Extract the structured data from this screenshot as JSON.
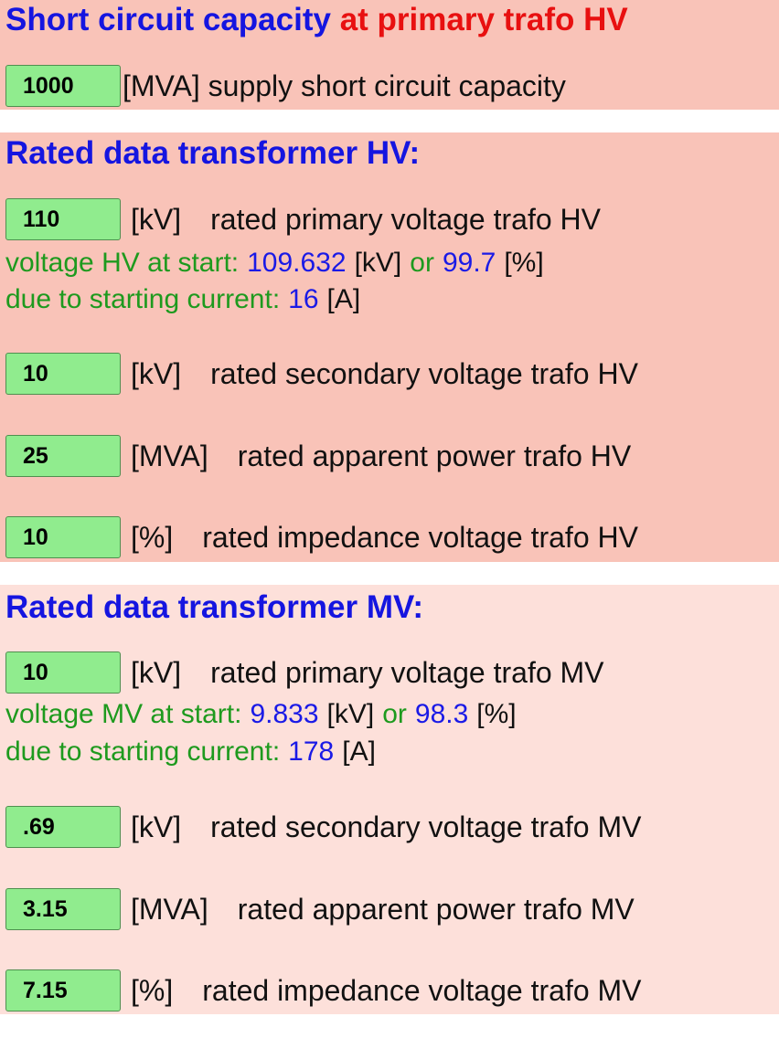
{
  "header": {
    "title_part1": "Short circuit capacity",
    "title_part2": "at primary trafo HV"
  },
  "supply": {
    "input": "1000",
    "label": "[MVA] supply short circuit capacity"
  },
  "sections": [
    {
      "heading": "Rated data transformer HV:",
      "rows": [
        {
          "input": "110",
          "unit": "[kV]",
          "label": "rated primary voltage trafo HV"
        },
        {
          "input": "10",
          "unit": "[kV]",
          "label": "rated secondary voltage trafo HV"
        },
        {
          "input": "25",
          "unit": "[MVA]",
          "label": "rated apparent power trafo HV"
        },
        {
          "input": "10",
          "unit": "[%]",
          "label": "rated impedance voltage trafo HV"
        }
      ],
      "info": {
        "voltage_text": "voltage HV at start:",
        "voltage_kv": "109.632",
        "kv_unit": "[kV]",
        "or": "or",
        "voltage_pct": "99.7",
        "pct_unit": "[%]",
        "current_text": "due to starting current:",
        "current": "16",
        "current_unit": "[A]"
      }
    },
    {
      "heading": "Rated data transformer MV:",
      "rows": [
        {
          "input": "10",
          "unit": "[kV]",
          "label": "rated primary voltage trafo MV"
        },
        {
          "input": ".69",
          "unit": "[kV]",
          "label": "rated secondary voltage trafo MV"
        },
        {
          "input": "3.15",
          "unit": "[MVA]",
          "label": "rated apparent power trafo MV"
        },
        {
          "input": "7.15",
          "unit": "[%]",
          "label": "rated impedance voltage trafo MV"
        }
      ],
      "info": {
        "voltage_text": "voltage MV at start:",
        "voltage_kv": "9.833",
        "kv_unit": "[kV]",
        "or": "or",
        "voltage_pct": "98.3",
        "pct_unit": "[%]",
        "current_text": "due to starting current:",
        "current": "178",
        "current_unit": "[A]"
      }
    }
  ]
}
